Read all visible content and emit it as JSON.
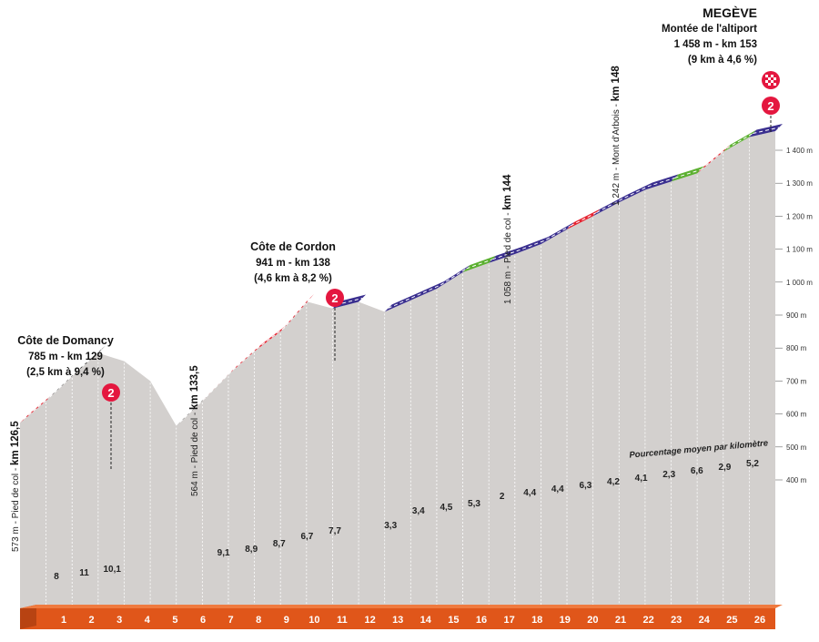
{
  "finish": {
    "name": "MEGÈVE",
    "climb": "Montée de l'altiport",
    "info": "1 458 m - km 153",
    "stats": "(9 km à 4,6 %)",
    "category": "2",
    "flag_icon": "checkered-flag-icon"
  },
  "climbs": [
    {
      "name": "Côte de Domancy",
      "info": "785 m - km 129",
      "stats": "(2,5 km à 9,4 %)",
      "category": "2"
    },
    {
      "name": "Côte de Cordon",
      "info": "941 m - km 138",
      "stats": "(4,6 km à 8,2 %)",
      "category": "2"
    }
  ],
  "feet": [
    {
      "alt": "573 m - Pied de col - ",
      "km": "km 126,5"
    },
    {
      "alt": "564 m - Pied de col - ",
      "km": "km 133,5"
    },
    {
      "alt": "1 058 m - Pied de col - ",
      "km": "km 144"
    },
    {
      "alt": "1 242 m - Mont d'Arbois - ",
      "km": "km 148"
    }
  ],
  "legend_text": "Pourcentage moyen par kilomètre",
  "colors": {
    "profile": "#d3d0ce",
    "km_band": "#e0561a",
    "cat_marker": "#e4173f",
    "grad_black": "#1a1a1a",
    "grad_red": "#e52330",
    "grad_blue": "#3a2f8f",
    "grad_green": "#5cb031"
  },
  "chart_data": {
    "type": "area",
    "x_unit": "km",
    "y_unit": "m",
    "y_ticks": [
      "400 m",
      "500 m",
      "600 m",
      "700 m",
      "800 m",
      "900 m",
      "1 000 m",
      "1 100 m",
      "1 200 m",
      "1 300 m",
      "1 400 m"
    ],
    "ylim": [
      350,
      1480
    ],
    "km_labels": [
      "1",
      "2",
      "3",
      "4",
      "5",
      "6",
      "7",
      "8",
      "9",
      "10",
      "11",
      "12",
      "13",
      "14",
      "15",
      "16",
      "17",
      "18",
      "19",
      "20",
      "21",
      "22",
      "23",
      "24",
      "25",
      "26"
    ],
    "percentages": [
      "8",
      "11",
      "10,1",
      "",
      "",
      "",
      "9,1",
      "8,9",
      "8,7",
      "6,7",
      "7,7",
      "",
      "3,3",
      "3,4",
      "4,5",
      "5,3",
      "2",
      "4,4",
      "4,4",
      "6,3",
      "4,2",
      "4,1",
      "2,3",
      "6,6",
      "2,9",
      "5,2"
    ],
    "profile_points": [
      [
        0,
        573
      ],
      [
        1,
        640
      ],
      [
        2,
        715
      ],
      [
        3,
        785
      ],
      [
        4,
        760
      ],
      [
        5,
        700
      ],
      [
        6,
        564
      ],
      [
        7,
        640
      ],
      [
        8,
        720
      ],
      [
        9,
        790
      ],
      [
        10,
        850
      ],
      [
        11,
        941
      ],
      [
        12,
        920
      ],
      [
        13,
        940
      ],
      [
        14,
        910
      ],
      [
        15,
        945
      ],
      [
        16,
        980
      ],
      [
        17,
        1030
      ],
      [
        18,
        1058
      ],
      [
        19,
        1085
      ],
      [
        20,
        1115
      ],
      [
        21,
        1160
      ],
      [
        22,
        1200
      ],
      [
        23,
        1242
      ],
      [
        24,
        1280
      ],
      [
        25,
        1305
      ],
      [
        26,
        1330
      ],
      [
        27,
        1395
      ],
      [
        28,
        1440
      ],
      [
        29,
        1458
      ]
    ],
    "gradient_segments": [
      {
        "from": 0,
        "to": 1,
        "color": "grad_red"
      },
      {
        "from": 1,
        "to": 3,
        "color": "grad_black"
      },
      {
        "from": 6,
        "to": 7,
        "color": "grad_black"
      },
      {
        "from": 7,
        "to": 11,
        "color": "grad_red"
      },
      {
        "from": 12,
        "to": 13,
        "color": "grad_blue"
      },
      {
        "from": 14,
        "to": 17,
        "color": "grad_blue"
      },
      {
        "from": 17,
        "to": 18,
        "color": "grad_green"
      },
      {
        "from": 18,
        "to": 21,
        "color": "grad_blue"
      },
      {
        "from": 21,
        "to": 22,
        "color": "grad_red"
      },
      {
        "from": 22,
        "to": 25,
        "color": "grad_blue"
      },
      {
        "from": 25,
        "to": 26,
        "color": "grad_green"
      },
      {
        "from": 26,
        "to": 27,
        "color": "grad_red"
      },
      {
        "from": 27,
        "to": 28,
        "color": "grad_green"
      },
      {
        "from": 28,
        "to": 29,
        "color": "grad_blue"
      }
    ]
  }
}
